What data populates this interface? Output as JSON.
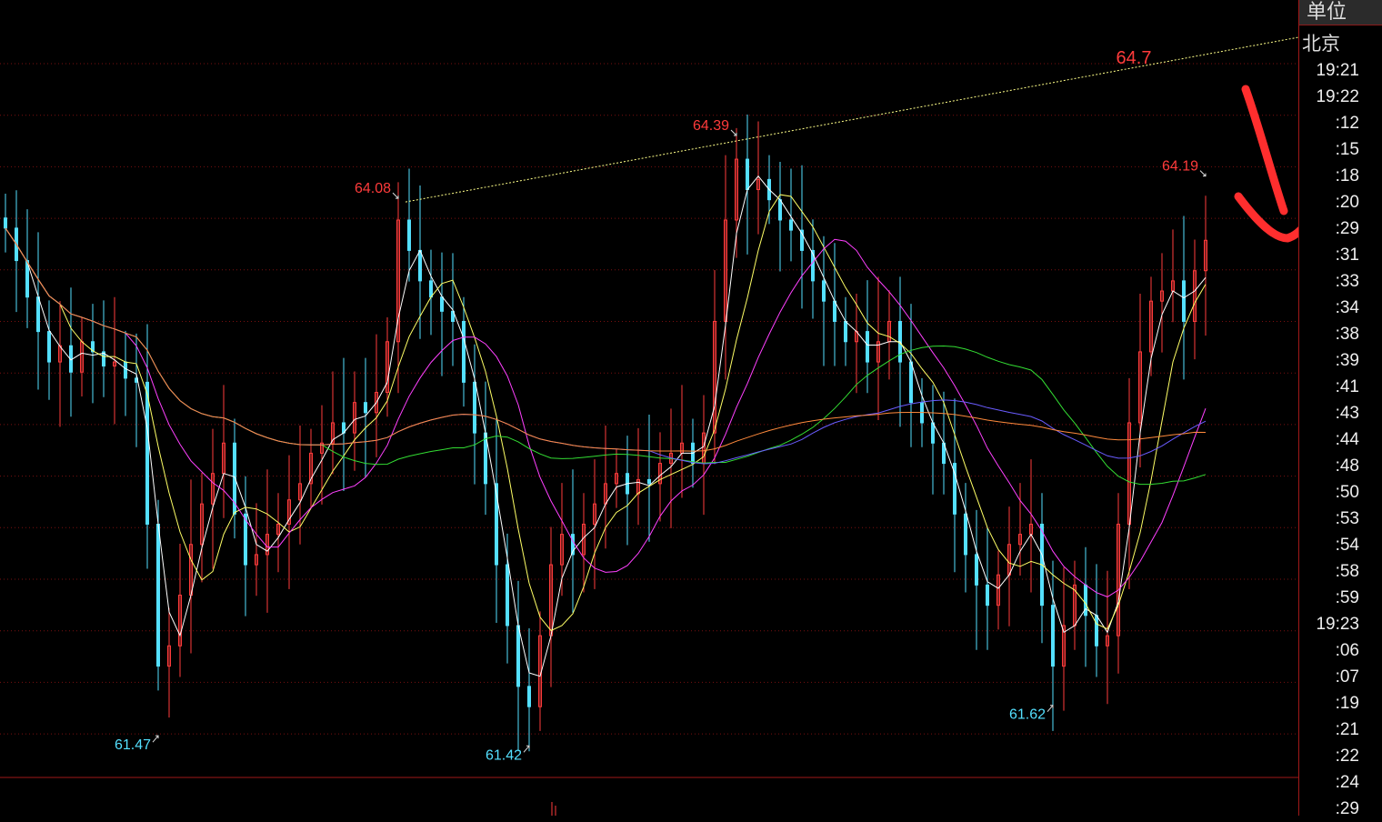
{
  "side_panel": {
    "header": "单位",
    "city": "北京",
    "times": [
      "19:21",
      "19:22",
      ":12",
      ":15",
      ":18",
      ":20",
      ":29",
      ":31",
      ":33",
      ":34",
      ":38",
      ":39",
      ":41",
      ":43",
      ":44",
      ":48",
      ":50",
      ":53",
      ":54",
      ":58",
      ":59",
      "19:23",
      ":06",
      ":07",
      ":19",
      ":21",
      ":22",
      ":24",
      ":29"
    ]
  },
  "chart_data": {
    "type": "candlestick",
    "ylim": [
      61.2,
      65.0
    ],
    "grid": true,
    "colors": {
      "up": "#ff3b3b",
      "down": "#54e0ff",
      "ma5": "#ffffff",
      "ma10": "#ffff66",
      "ma20": "#ff40ff",
      "ma60": "#33dd33",
      "ma120": "#6a5cff",
      "ma240": "#ff8a3c",
      "trendline": "#ffff88",
      "grid": "#7a1010",
      "annotation_high": "#ff3b3b",
      "annotation_low": "#54e0ff"
    },
    "closes": [
      63.96,
      63.8,
      63.62,
      63.45,
      63.3,
      63.38,
      63.25,
      63.4,
      63.35,
      63.28,
      63.3,
      63.22,
      63.2,
      62.5,
      61.8,
      61.9,
      62.15,
      62.4,
      62.6,
      62.75,
      62.9,
      62.55,
      62.3,
      62.35,
      62.45,
      62.5,
      62.62,
      62.7,
      62.85,
      62.9,
      63.0,
      62.95,
      63.1,
      63.05,
      63.15,
      63.4,
      64.0,
      63.85,
      63.7,
      63.62,
      63.55,
      63.5,
      63.2,
      62.95,
      62.7,
      62.3,
      62.0,
      61.7,
      61.6,
      61.95,
      62.3,
      62.45,
      62.35,
      62.5,
      62.6,
      62.7,
      62.75,
      62.65,
      62.72,
      62.7,
      62.8,
      62.85,
      62.9,
      62.8,
      62.95,
      63.5,
      64.0,
      64.3,
      64.15,
      64.2,
      64.1,
      64.0,
      63.95,
      63.85,
      63.7,
      63.6,
      63.5,
      63.4,
      63.45,
      63.3,
      63.4,
      63.5,
      63.3,
      63.1,
      63.0,
      62.9,
      62.8,
      62.55,
      62.35,
      62.2,
      62.1,
      62.25,
      62.4,
      62.45,
      62.5,
      62.1,
      61.8,
      62.0,
      62.2,
      62.05,
      61.9,
      61.95,
      62.5,
      63.0,
      63.35,
      63.6,
      63.65,
      63.7,
      63.5,
      63.75,
      63.9
    ],
    "annotations": [
      {
        "label": "61.47",
        "bar": 14,
        "price": 61.47,
        "kind": "low"
      },
      {
        "label": "64.08",
        "bar": 36,
        "price": 64.08,
        "kind": "high"
      },
      {
        "label": "61.42",
        "bar": 48,
        "price": 61.42,
        "kind": "low"
      },
      {
        "label": "64.39",
        "bar": 67,
        "price": 64.39,
        "kind": "high"
      },
      {
        "label": "61.62",
        "bar": 96,
        "price": 61.62,
        "kind": "low"
      },
      {
        "label": "64.19",
        "bar": 110,
        "price": 64.19,
        "kind": "high"
      }
    ],
    "trendline": {
      "from_bar": 36,
      "from_price": 64.08,
      "to_bar": 67,
      "to_price": 64.39,
      "target_label": "64.7"
    }
  }
}
